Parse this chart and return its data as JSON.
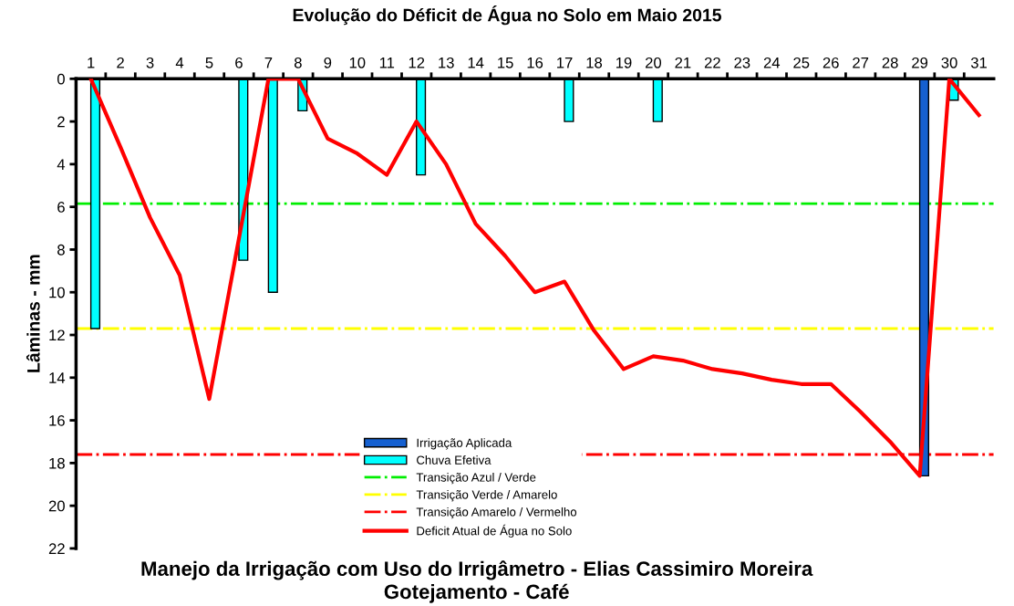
{
  "chart_data": {
    "type": "bar",
    "title": "Evolução do Déficit de Água no Solo em Maio 2015",
    "ylabel": "Lâminas - mm",
    "categories": [
      "1",
      "2",
      "3",
      "4",
      "5",
      "6",
      "7",
      "8",
      "9",
      "10",
      "11",
      "12",
      "13",
      "14",
      "15",
      "16",
      "17",
      "18",
      "19",
      "20",
      "21",
      "22",
      "23",
      "24",
      "25",
      "26",
      "27",
      "28",
      "29",
      "30",
      "31"
    ],
    "series": [
      {
        "name": "Irrigação Aplicada",
        "color": "#1560d0",
        "values": [
          null,
          null,
          null,
          null,
          null,
          null,
          null,
          null,
          null,
          null,
          null,
          null,
          null,
          null,
          null,
          null,
          null,
          null,
          null,
          null,
          null,
          null,
          null,
          null,
          null,
          null,
          null,
          null,
          18.6,
          null,
          null
        ]
      },
      {
        "name": "Chuva Efetiva",
        "color": "#00ffff",
        "values": [
          11.7,
          null,
          null,
          null,
          null,
          8.5,
          10,
          1.5,
          null,
          null,
          null,
          4.5,
          null,
          null,
          null,
          null,
          2,
          null,
          null,
          2,
          null,
          null,
          null,
          null,
          null,
          null,
          null,
          null,
          null,
          1,
          null
        ]
      },
      {
        "name": "Deficit Atual de Água no Solo",
        "type": "line",
        "color": "#ff0000",
        "values": [
          0,
          3.2,
          6.5,
          9.2,
          15,
          7.5,
          0,
          0,
          2.8,
          3.5,
          4.5,
          2,
          4,
          6.8,
          8.3,
          10,
          9.5,
          11.8,
          13.6,
          13,
          13.2,
          13.6,
          13.8,
          14.1,
          14.3,
          14.3,
          15.6,
          17,
          18.6,
          0,
          1.7
        ]
      }
    ],
    "ref_lines": [
      {
        "axis": "y",
        "value": 5.85,
        "label": "Transição Azul / Verde",
        "color": "#00ee00",
        "line_style": "dashdot"
      },
      {
        "axis": "y",
        "value": 11.7,
        "label": "Transição Verde / Amarelo",
        "color": "#ffff00",
        "line_style": "dashdot"
      },
      {
        "axis": "y",
        "value": 17.6,
        "label": "Transição Amarelo / Vermelho",
        "color": "#ff0000",
        "line_style": "dashdot"
      }
    ],
    "ylim": [
      22,
      0
    ],
    "yticks": [
      0,
      2,
      4,
      6,
      8,
      10,
      12,
      14,
      16,
      18,
      20,
      22
    ],
    "grid": false,
    "legend": "bottom",
    "annotations": [
      "Manejo da Irrigação com Uso do Irrigâmetro - Elias Cassimiro Moreira",
      "Gotejamento - Café"
    ]
  }
}
